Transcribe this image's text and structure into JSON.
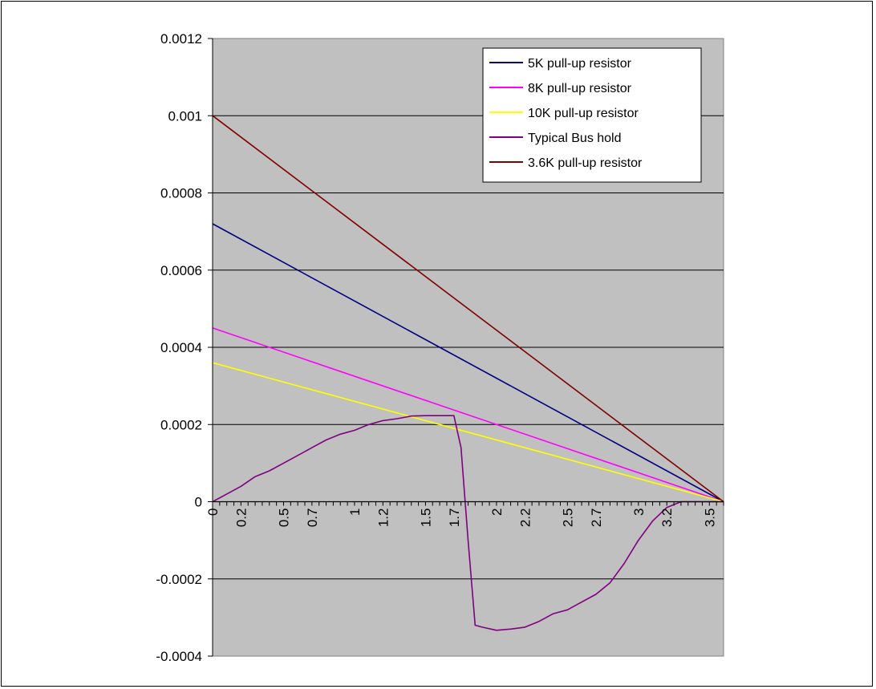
{
  "chart_data": {
    "type": "line",
    "title": "",
    "xlabel": "",
    "ylabel": "",
    "xlim": [
      0,
      3.6
    ],
    "ylim": [
      -0.0004,
      0.0012
    ],
    "y_ticks": [
      "0.0012",
      "0.001",
      "0.0008",
      "0.0006",
      "0.0004",
      "0.0002",
      "0",
      "-0.0002",
      "-0.0004"
    ],
    "x_tick_labels": [
      "0",
      "0.2",
      "0.5",
      "0.7",
      "1",
      "1.2",
      "1.5",
      "1.7",
      "2",
      "2.2",
      "2.5",
      "2.7",
      "3",
      "3.2",
      "3.5"
    ],
    "grid": "horizontal",
    "legend_position": "top-right",
    "plot_background": "#c0c0c0",
    "series": [
      {
        "name": "5K pull-up resistor",
        "color": "#000080",
        "x": [
          0,
          3.6
        ],
        "y": [
          0.00072,
          0
        ]
      },
      {
        "name": "8K pull-up resistor",
        "color": "#ff00ff",
        "x": [
          0,
          3.6
        ],
        "y": [
          0.00045,
          0
        ]
      },
      {
        "name": "10K pull-up resistor",
        "color": "#ffff00",
        "x": [
          0,
          3.6
        ],
        "y": [
          0.00036,
          0
        ]
      },
      {
        "name": "Typical Bus hold",
        "color": "#800080",
        "x": [
          0,
          0.1,
          0.2,
          0.3,
          0.4,
          0.5,
          0.6,
          0.7,
          0.8,
          0.9,
          1.0,
          1.1,
          1.2,
          1.3,
          1.4,
          1.5,
          1.6,
          1.7,
          1.75,
          1.8,
          1.85,
          1.9,
          2.0,
          2.1,
          2.2,
          2.3,
          2.4,
          2.5,
          2.6,
          2.7,
          2.8,
          2.9,
          3.0,
          3.1,
          3.2,
          3.3,
          3.4,
          3.5,
          3.6
        ],
        "y": [
          0,
          2e-05,
          4e-05,
          6.5e-05,
          8e-05,
          0.0001,
          0.00012,
          0.00014,
          0.00016,
          0.000175,
          0.000185,
          0.0002,
          0.00021,
          0.000215,
          0.000222,
          0.000223,
          0.000223,
          0.000223,
          0.00014,
          -0.0001,
          -0.00032,
          -0.000325,
          -0.000333,
          -0.00033,
          -0.000325,
          -0.00031,
          -0.00029,
          -0.00028,
          -0.00026,
          -0.00024,
          -0.00021,
          -0.00016,
          -0.0001,
          -5e-05,
          -1.5e-05,
          0,
          0,
          0,
          0
        ]
      },
      {
        "name": "3.6K pull-up resistor",
        "color": "#800000",
        "x": [
          0,
          3.6
        ],
        "y": [
          0.001,
          0
        ]
      }
    ]
  }
}
